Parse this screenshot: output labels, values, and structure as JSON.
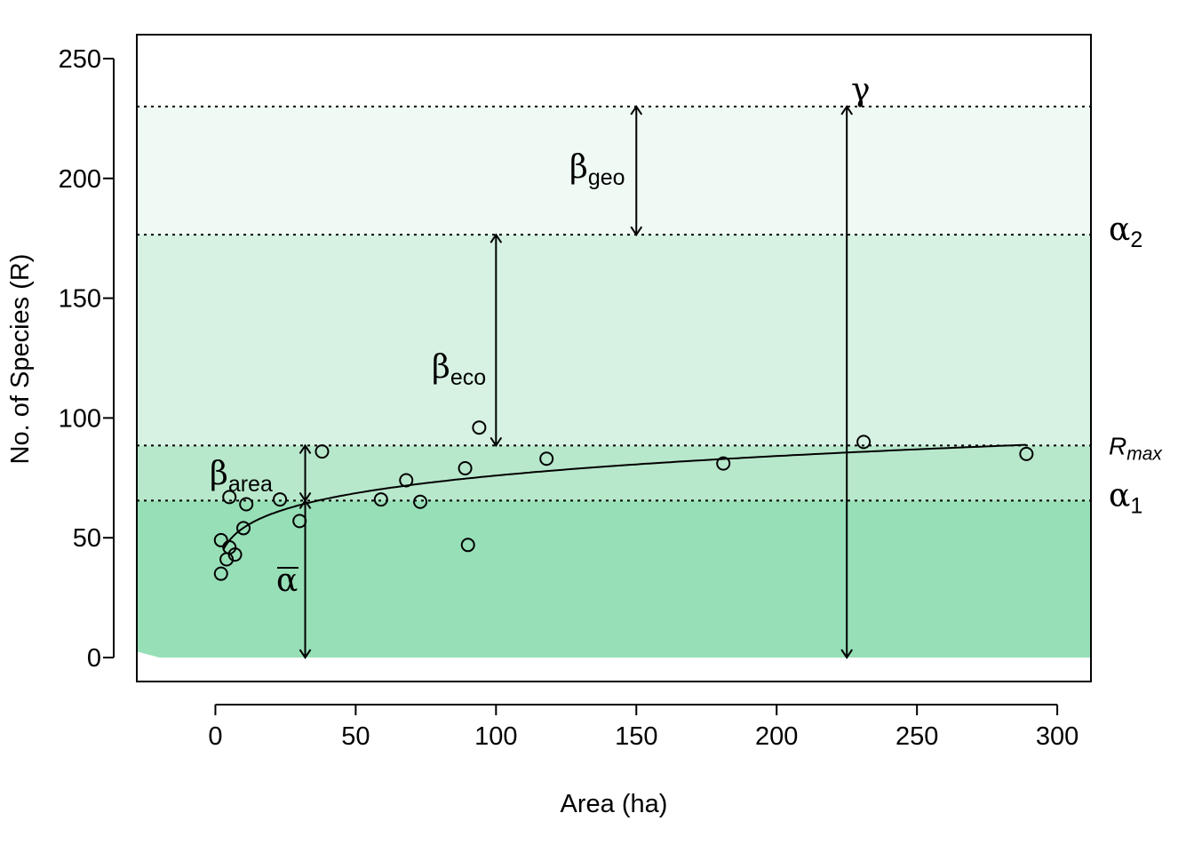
{
  "chart_data": {
    "type": "scatter",
    "title": "",
    "xlabel": "Area (ha)",
    "ylabel": "No. of Species (R)",
    "xlim": [
      -28,
      312
    ],
    "ylim": [
      -10,
      260
    ],
    "x_ticks": [
      0,
      50,
      100,
      150,
      200,
      250,
      300
    ],
    "y_ticks": [
      0,
      50,
      100,
      150,
      200,
      250
    ],
    "grid": false,
    "colors": {
      "band_lower": "#97dfb7",
      "band_rmax": "#b8e8cb",
      "band_eco": "#d7f2e3",
      "band_geo": "#f0faf4",
      "points": "#000000",
      "curve": "#000000"
    },
    "levels": {
      "alpha_bar": 65.5,
      "r_max": 88.5,
      "alpha_2": 176.5,
      "gamma": 230
    },
    "points": [
      {
        "x": 2,
        "y": 49
      },
      {
        "x": 2,
        "y": 35
      },
      {
        "x": 4,
        "y": 41
      },
      {
        "x": 5,
        "y": 46
      },
      {
        "x": 5,
        "y": 67
      },
      {
        "x": 7,
        "y": 43
      },
      {
        "x": 10,
        "y": 54
      },
      {
        "x": 11,
        "y": 64
      },
      {
        "x": 23,
        "y": 66
      },
      {
        "x": 30,
        "y": 57
      },
      {
        "x": 38,
        "y": 86
      },
      {
        "x": 59,
        "y": 66
      },
      {
        "x": 68,
        "y": 74
      },
      {
        "x": 73,
        "y": 65
      },
      {
        "x": 89,
        "y": 79
      },
      {
        "x": 90,
        "y": 47
      },
      {
        "x": 94,
        "y": 96
      },
      {
        "x": 118,
        "y": 83
      },
      {
        "x": 181,
        "y": 81
      },
      {
        "x": 231,
        "y": 90
      },
      {
        "x": 289,
        "y": 85
      }
    ],
    "fit_curve": {
      "model": "power",
      "c": 38.6,
      "z": 0.147,
      "x_start": 3,
      "x_end": 289
    },
    "annotations": [
      {
        "id": "beta-geo",
        "text": "β",
        "sub": "geo",
        "x": 150,
        "from": 176.5,
        "to": 230
      },
      {
        "id": "beta-eco",
        "text": "β",
        "sub": "eco",
        "x": 100,
        "from": 88.5,
        "to": 176.5
      },
      {
        "id": "beta-area",
        "text": "β",
        "sub": "area",
        "x": 32,
        "from": 65.5,
        "to": 88.5
      },
      {
        "id": "alpha-bar",
        "text": "α",
        "sub": "",
        "x": 32,
        "from": 0,
        "to": 65.5
      },
      {
        "id": "gamma",
        "text": "γ",
        "sub": "",
        "x": 225,
        "from": 0,
        "to": 230
      }
    ],
    "right_labels": [
      {
        "id": "alpha-2",
        "text": "α",
        "sub": "2",
        "y": 176.5
      },
      {
        "id": "r-max",
        "text": "R",
        "sub": "max",
        "y": 88.5
      },
      {
        "id": "alpha-1",
        "text": "α",
        "sub": "1",
        "y": 65.5
      }
    ]
  }
}
